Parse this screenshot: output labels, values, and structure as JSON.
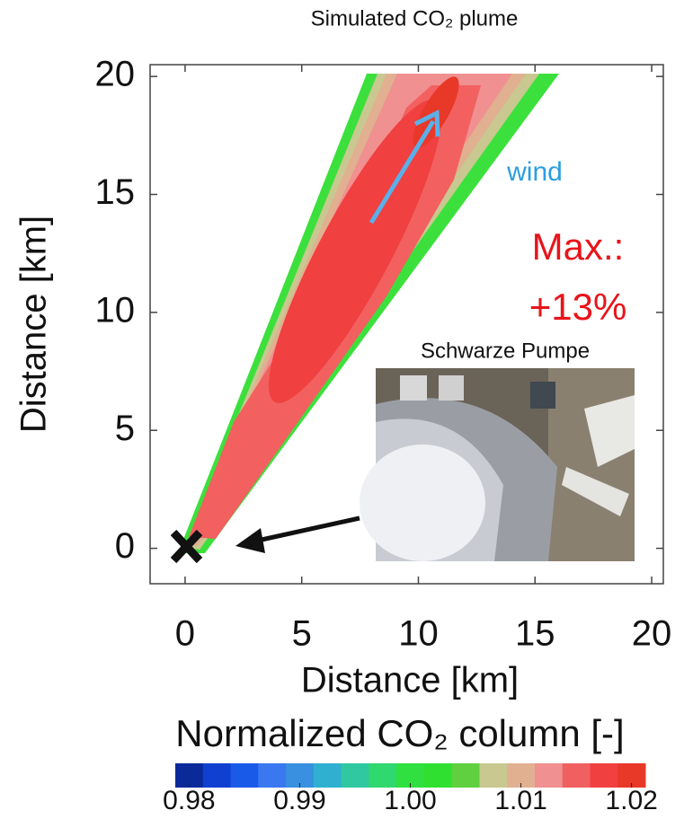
{
  "chart_data": {
    "type": "contour",
    "title": "Simulated CO₂ plume",
    "xlabel": "Distance [km]",
    "ylabel": "Distance [km]",
    "xlim": [
      -1.5,
      20.5
    ],
    "ylim": [
      -1.5,
      20.5
    ],
    "xticks": [
      0,
      5,
      10,
      15,
      20
    ],
    "yticks": [
      0,
      5,
      10,
      15,
      20
    ],
    "wind_label": "wind",
    "max_label": "Max.:",
    "max_value": "+13%",
    "inset_label": "Schwarze Pumpe",
    "colorbar": {
      "label": "Normalized CO₂ column [-]",
      "clim": [
        0.97875,
        1.02125
      ],
      "ticks": [
        0.98,
        0.99,
        {
          "value": 1,
          "label": "1.00"
        },
        1.01,
        1.02
      ],
      "colors": [
        "#0a2a9a",
        "#1040d0",
        "#1a5ae8",
        "#3a78f0",
        "#3a90e0",
        "#30b0d0",
        "#30c8a0",
        "#30d870",
        "#30e040",
        "#30e030",
        "#60d040",
        "#c8c890",
        "#e0b090",
        "#f09090",
        "#f06060",
        "#f04040",
        "#e83828"
      ]
    }
  }
}
